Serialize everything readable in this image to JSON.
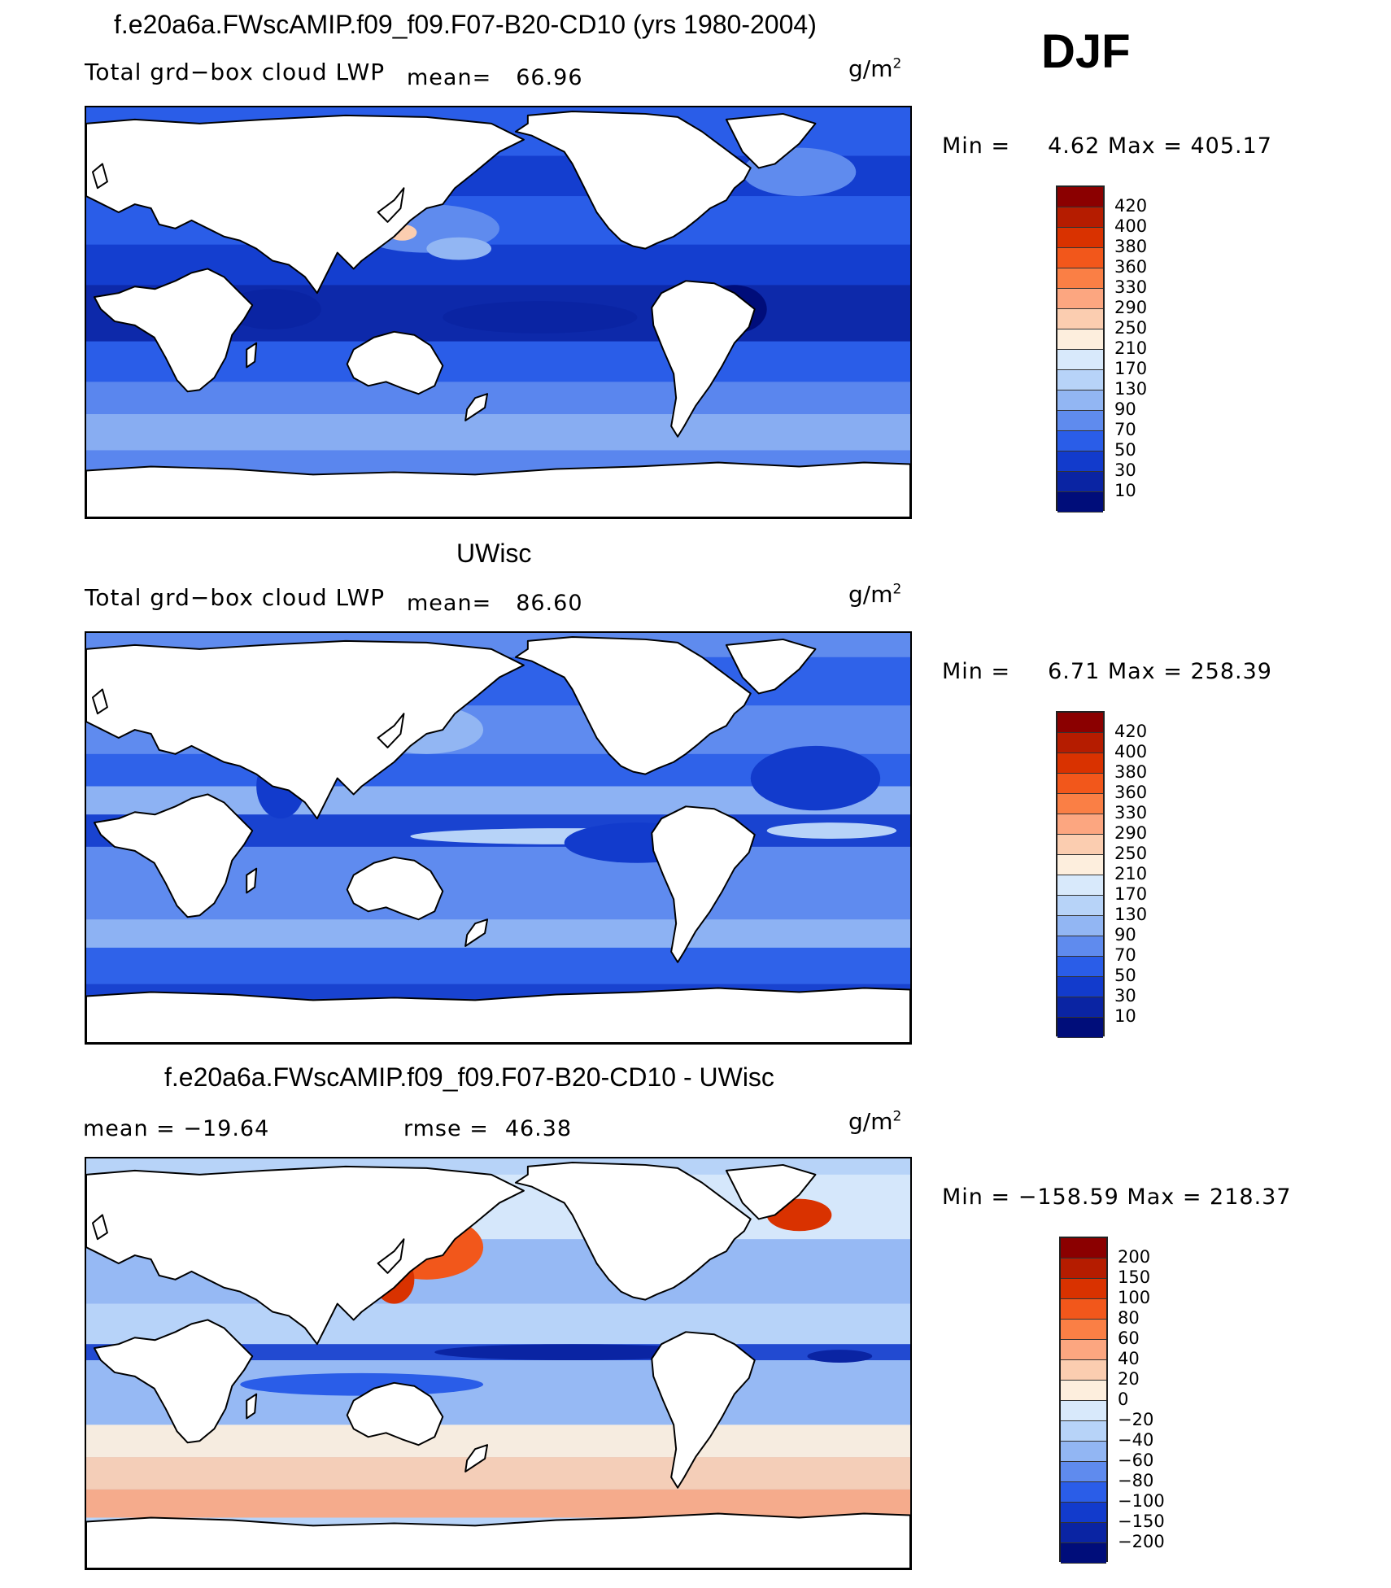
{
  "season": "DJF",
  "panels": [
    {
      "title": "f.e20a6a.FWscAMIP.f09_f09.F07-B20-CD10 (yrs 1980-2004)",
      "left_label": "Total grd−box cloud LWP",
      "mean_label": "mean=",
      "mean_value": "66.96",
      "units": "g/m",
      "units_exp": "2",
      "min_label": "Min =",
      "min_value": "4.62",
      "max_label": "Max =",
      "max_value": "405.17",
      "legend": {
        "levels": [
          "420",
          "400",
          "380",
          "360",
          "330",
          "290",
          "250",
          "210",
          "170",
          "130",
          "90",
          "70",
          "50",
          "30",
          "10"
        ],
        "colors": [
          "#8b0000",
          "#b51c00",
          "#d93200",
          "#f2571b",
          "#fa7f45",
          "#fca680",
          "#fbcdb0",
          "#fdeedd",
          "#d8e9fb",
          "#b7d3f8",
          "#92b6f3",
          "#5f8bee",
          "#2a5de8",
          "#123bcc",
          "#0a24a3",
          "#000d7a"
        ]
      },
      "field": "model"
    },
    {
      "title": "UWisc",
      "left_label": "Total grd−box cloud LWP",
      "mean_label": "mean=",
      "mean_value": "86.60",
      "units": "g/m",
      "units_exp": "2",
      "min_label": "Min =",
      "min_value": "6.71",
      "max_label": "Max =",
      "max_value": "258.39",
      "legend": {
        "levels": [
          "420",
          "400",
          "380",
          "360",
          "330",
          "290",
          "250",
          "210",
          "170",
          "130",
          "90",
          "70",
          "50",
          "30",
          "10"
        ],
        "colors": [
          "#8b0000",
          "#b51c00",
          "#d93200",
          "#f2571b",
          "#fa7f45",
          "#fca680",
          "#fbcdb0",
          "#fdeedd",
          "#d8e9fb",
          "#b7d3f8",
          "#92b6f3",
          "#5f8bee",
          "#2a5de8",
          "#123bcc",
          "#0a24a3",
          "#000d7a"
        ]
      },
      "field": "obs"
    },
    {
      "title": "f.e20a6a.FWscAMIP.f09_f09.F07-B20-CD10 - UWisc",
      "mean_label": "mean =",
      "mean_value": "−19.64",
      "rmse_label": "rmse =",
      "rmse_value": "46.38",
      "units": "g/m",
      "units_exp": "2",
      "min_label": "Min =",
      "min_value": "−158.59",
      "max_label": "Max =",
      "max_value": "218.37",
      "legend": {
        "levels": [
          "200",
          "150",
          "100",
          "80",
          "60",
          "40",
          "20",
          "0",
          "−20",
          "−40",
          "−60",
          "−80",
          "−100",
          "−150",
          "−200"
        ],
        "colors": [
          "#8b0000",
          "#b51c00",
          "#d93200",
          "#f2571b",
          "#fa7f45",
          "#fca680",
          "#fbcdb0",
          "#fdeedd",
          "#d8e9fb",
          "#b7d3f8",
          "#92b6f3",
          "#5f8bee",
          "#2a5de8",
          "#123bcc",
          "#0a24a3",
          "#000d7a"
        ]
      },
      "field": "diff"
    }
  ]
}
